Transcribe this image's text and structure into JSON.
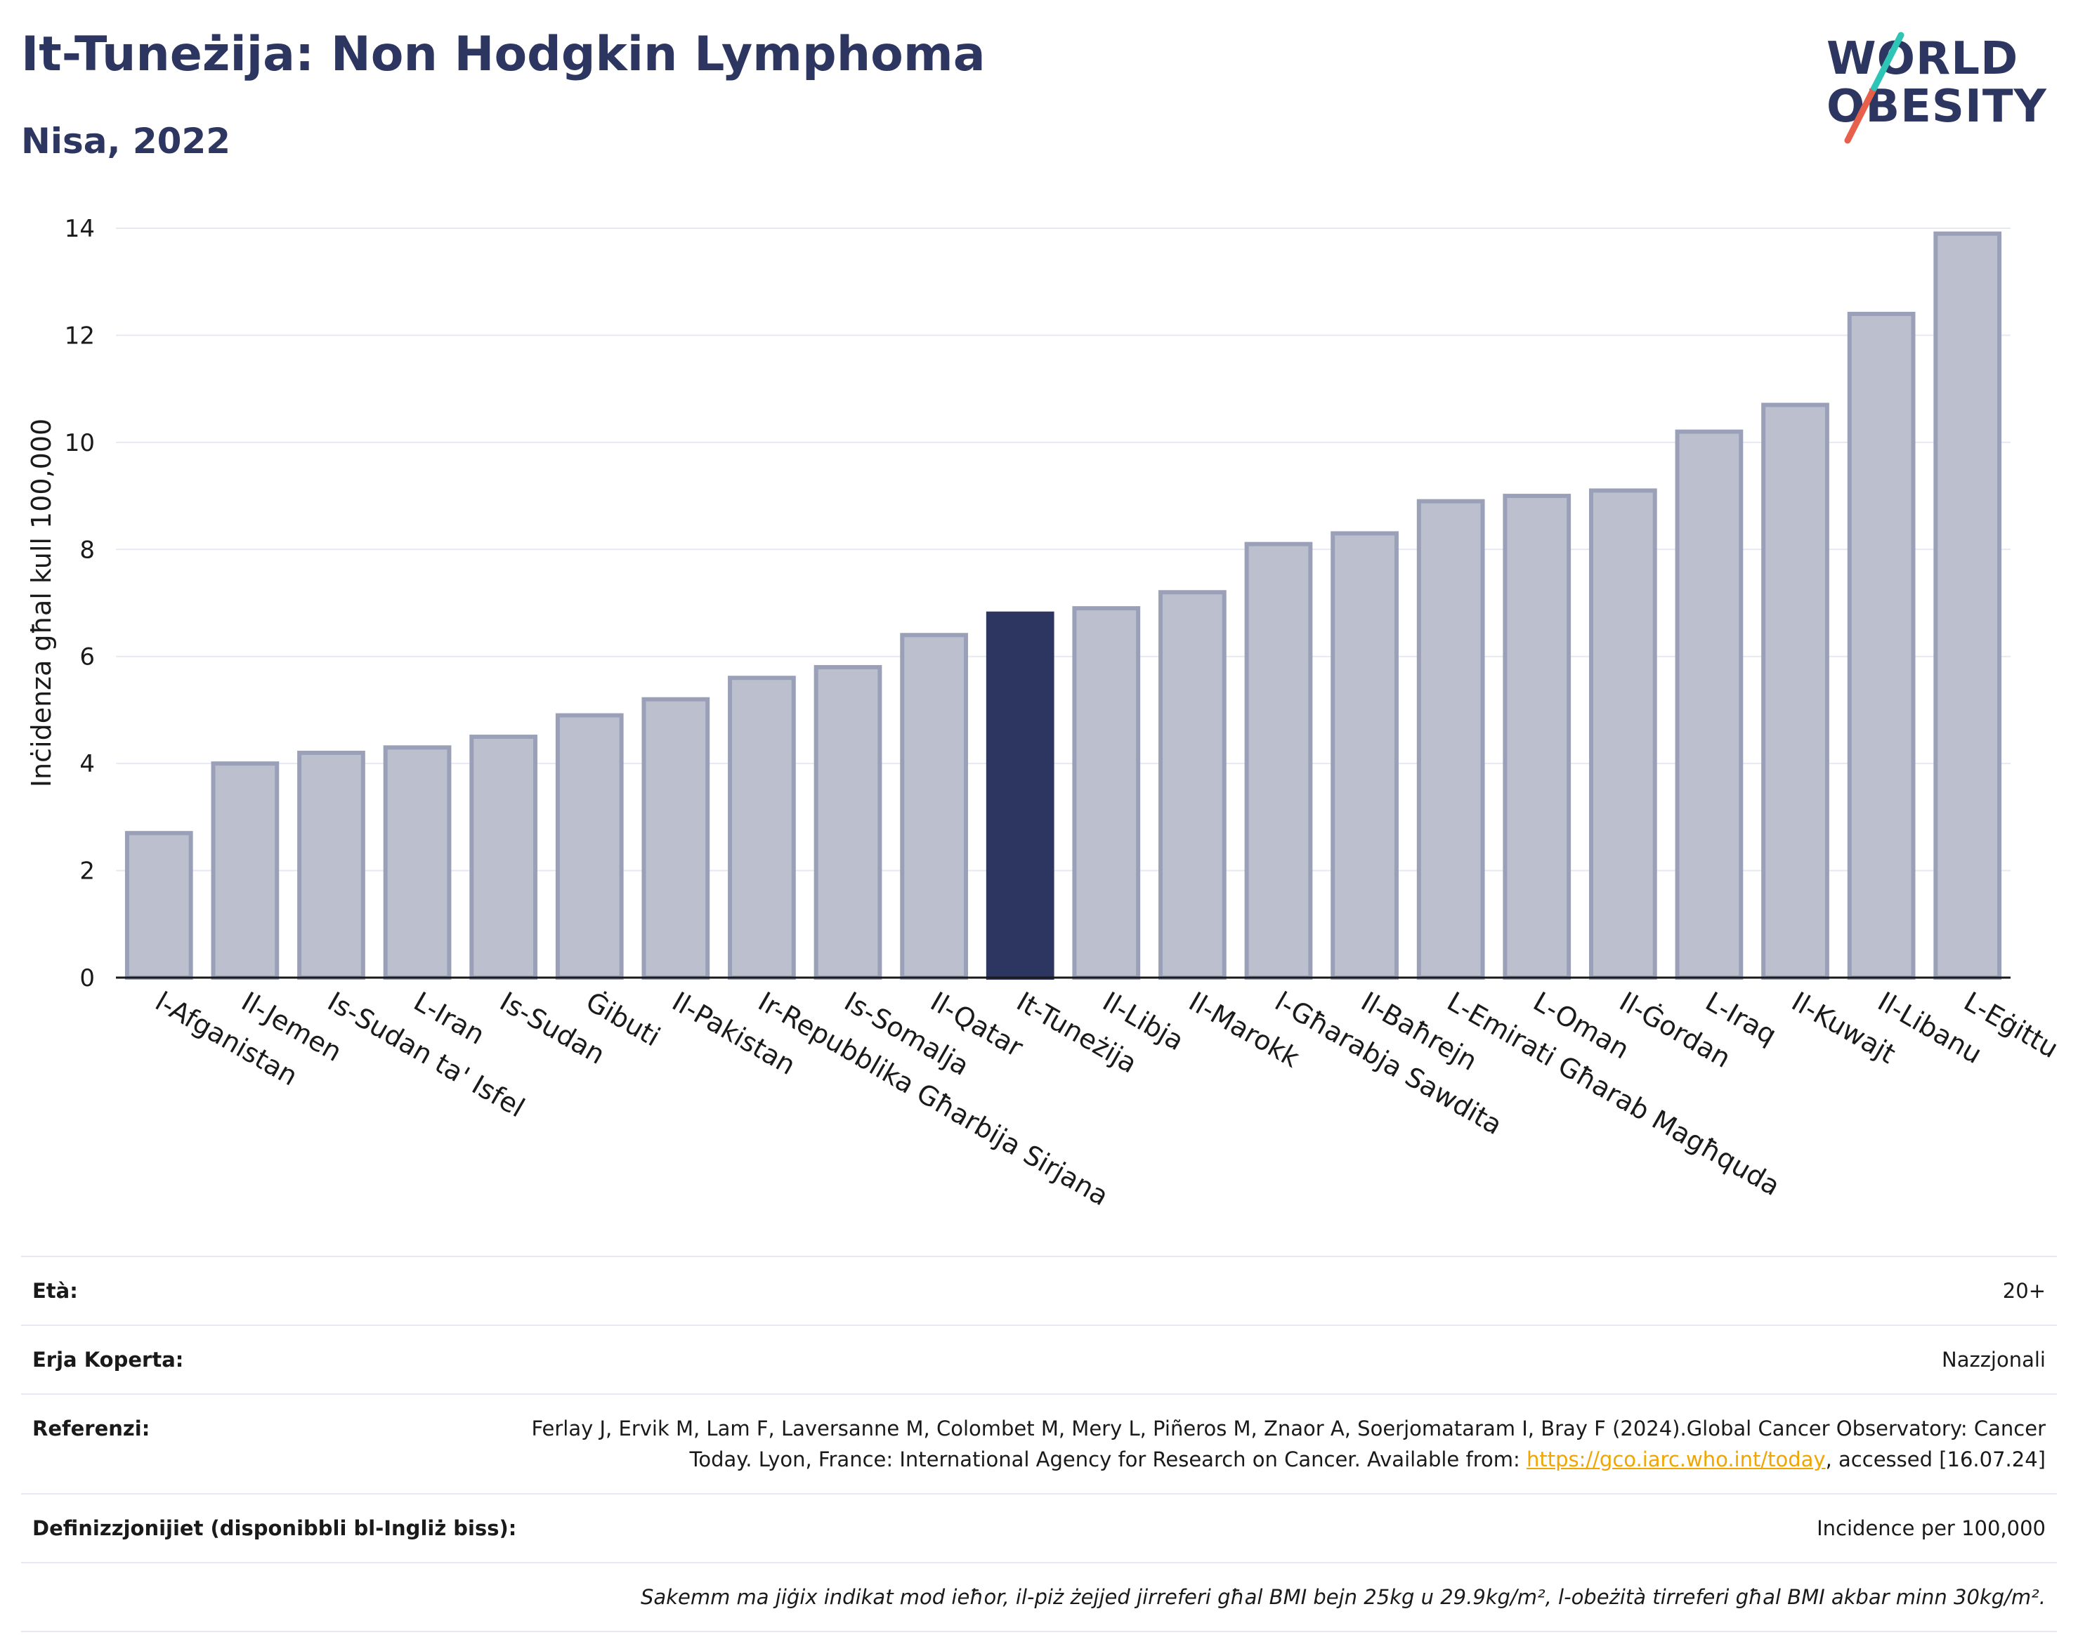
{
  "title": "It-Tuneżija: Non Hodgkin Lymphoma",
  "subtitle": "Nisa, 2022",
  "logo": {
    "line1": "WORLD",
    "line2": "OBESITY",
    "accent_colors": [
      "#2ec4b6",
      "#e8604c"
    ]
  },
  "colors": {
    "bar": "#bcc0ce",
    "bar_border": "#9aa0b7",
    "highlight": "#2d3561",
    "grid": "#e6e9f2",
    "text": "#1a1a1a"
  },
  "chart_data": {
    "type": "bar",
    "ylabel": "Inċidenza għal kull 100,000",
    "xlabel": "",
    "ylim": [
      0,
      14
    ],
    "yticks": [
      "0",
      "2",
      "4",
      "6",
      "8",
      "10",
      "12",
      "14"
    ],
    "grid": true,
    "highlight": "It-Tuneżija",
    "categories": [
      "l-Afganistan",
      "Il-Jemen",
      "Is-Sudan ta' Isfel",
      "L-Iran",
      "Is-Sudan",
      "Ġibuti",
      "Il-Pakistan",
      "Ir-Repubblika Għarbija Sirjana",
      "Is-Somalja",
      "Il-Qatar",
      "It-Tuneżija",
      "Il-Libja",
      "Il-Marokk",
      "l-Għarabja Sawdita",
      "Il-Baħrejn",
      "L-Emirati Għarab Magħquda",
      "L-Oman",
      "Il-Ġordan",
      "L-Iraq",
      "Il-Kuwajt",
      "Il-Libanu",
      "L-Eġittu"
    ],
    "values": [
      2.7,
      4.0,
      4.2,
      4.3,
      4.5,
      4.9,
      5.2,
      5.6,
      5.8,
      6.4,
      6.8,
      6.9,
      7.2,
      8.1,
      8.3,
      8.9,
      9.0,
      9.1,
      10.2,
      10.7,
      12.4,
      13.9
    ]
  },
  "info": [
    {
      "label": "Età:",
      "value": "20+"
    },
    {
      "label": "Erja Koperta:",
      "value": "Nazzjonali"
    },
    {
      "label": "Referenzi:",
      "value_pre": "Ferlay J, Ervik M, Lam F, Laversanne M, Colombet M, Mery L, Piñeros M, Znaor A, Soerjomataram I, Bray F (2024).Global Cancer Observatory: Cancer Today. Lyon, France: International Agency for Research on Cancer. Available from: ",
      "link": "https://gco.iarc.who.int/today",
      "value_post": ", accessed [16.07.24]"
    },
    {
      "label": "Definizzjonijiet (disponibbli bl-Ingliż biss):",
      "value": "Incidence per 100,000"
    }
  ],
  "note": "Sakemm ma jiġix indikat mod ieħor, il-piż żejjed jirreferi għal BMI bejn 25kg u 29.9kg/m², l-obeżità tirreferi għal BMI akbar minn 30kg/m²."
}
